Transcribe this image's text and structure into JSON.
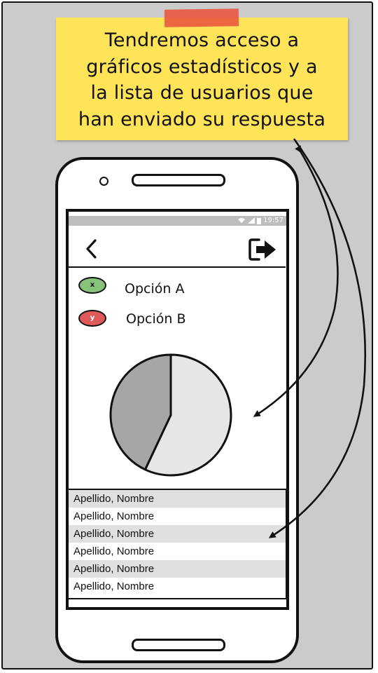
{
  "note": {
    "lines": [
      "Tendremos acceso a",
      "gráficos estadísticos y a",
      "la lista de usuarios que",
      "han enviado su respuesta"
    ]
  },
  "status_bar": {
    "time": "19:57"
  },
  "header": {
    "back_icon": "chevron-left-icon",
    "exit_icon": "logout-icon"
  },
  "legend": [
    {
      "chip": "x",
      "label": "Opción A",
      "color": "#87c27a"
    },
    {
      "chip": "y",
      "label": "Opción B",
      "color": "#e05a5a"
    }
  ],
  "pie": {
    "slices": [
      {
        "fraction": 0.57,
        "color": "#e6e6e6"
      },
      {
        "fraction": 0.43,
        "color": "#a6a6a6"
      }
    ]
  },
  "user_list": [
    "Apellido, Nombre",
    "Apellido, Nombre",
    "Apellido, Nombre",
    "Apellido, Nombre",
    "Apellido, Nombre",
    "Apellido, Nombre"
  ],
  "colors": {
    "sticky_note": "#ffe45a",
    "tape": "#e8543e",
    "background": "#cbcbcb"
  }
}
